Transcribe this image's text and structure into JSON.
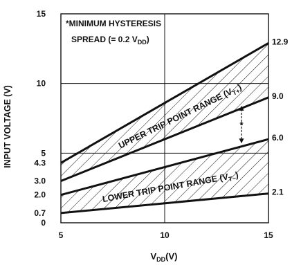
{
  "chart_data": {
    "type": "area",
    "xlabel": "V_DD(V)",
    "ylabel": "INPUT VOLTAGE (V)",
    "x_ticks": [
      5,
      10,
      15
    ],
    "y_ticks": [
      0,
      0.7,
      2.0,
      3.0,
      4.3,
      5,
      10,
      15
    ],
    "y_tick_labels": [
      "0",
      "0.7",
      "2.0",
      "3.0",
      "4.3",
      "5",
      "10",
      "15"
    ],
    "xlim": [
      5,
      15
    ],
    "ylim": [
      0,
      15
    ],
    "grid_x": [
      10
    ],
    "grid_y": [
      5,
      10
    ],
    "note_line1": "*MINIMUM HYSTERESIS",
    "note_line2": "SPREAD (= 0.2 V",
    "note_sub": "DD",
    "note_tail": ")",
    "series": [
      {
        "name": "UPPER TRIP POINT RANGE (V",
        "sub": "T+",
        "close": ")",
        "x": [
          5,
          15
        ],
        "upper": [
          4.3,
          12.9
        ],
        "lower": [
          3.0,
          9.0
        ],
        "end_labels": [
          "12.9",
          "9.0"
        ]
      },
      {
        "name": "LOWER TRIP POINT RANGE (V",
        "sub": "T−",
        "close": ")",
        "x": [
          5,
          15
        ],
        "upper": [
          2.0,
          6.0
        ],
        "lower": [
          0.7,
          2.1
        ],
        "end_labels": [
          "6.0",
          "2.1"
        ]
      }
    ],
    "hysteresis_marker": {
      "x": 13.7,
      "from": 5.7,
      "to": 8.4,
      "label": "*"
    }
  }
}
